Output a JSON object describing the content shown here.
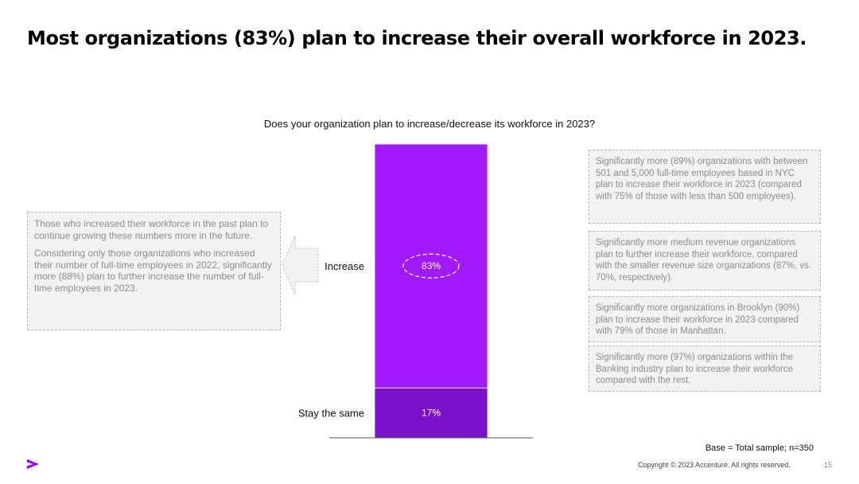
{
  "page": {
    "title": "Most organizations (83%) plan to increase their overall workforce in 2023.",
    "question": "Does your organization plan to increase/decrease its workforce in 2023?",
    "base_note": "Base = Total sample; n=350",
    "copyright": "Copyright © 2023 Accenture. All rights reserved.",
    "page_number": "15"
  },
  "left_note": {
    "para1": "Those who increased their workforce in the past plan to continue growing these numbers more in the future.",
    "para2": "Considering only those organizations who increased their number of full-time employees in 2022, significantly more (88%) plan to further increase the number of full-time employees in 2023."
  },
  "right_notes": [
    "Significantly more (89%) organizations with between 501 and 5,000 full-time employees based in NYC plan to increase their workforce in 2023 (compared with 75% of those with less than 500 employees).",
    "Significantly more medium revenue organizations plan to further increase their workforce, compared with the smaller revenue size organizations (87%, vs. 70%, respectively).",
    "Significantly more organizations in Brooklyn (90%) plan to increase their workforce in 2023 compared with 79% of those in Manhattan.",
    "Significantly more (97%) organizations within the Banking industry plan to increase their workforce compared with the rest."
  ],
  "chart_data": {
    "type": "bar",
    "stacked": true,
    "categories": [
      "Stay the same",
      "Increase"
    ],
    "values": [
      17,
      83
    ],
    "value_labels": [
      "17%",
      "83%"
    ],
    "colors": [
      "#7a12cc",
      "#a11aff"
    ],
    "highlighted": "Increase",
    "ylim": [
      0,
      100
    ]
  },
  "colors": {
    "accent": "#a100ff",
    "note_bg": "#f2f2f2",
    "note_text": "#8c8c8c"
  }
}
